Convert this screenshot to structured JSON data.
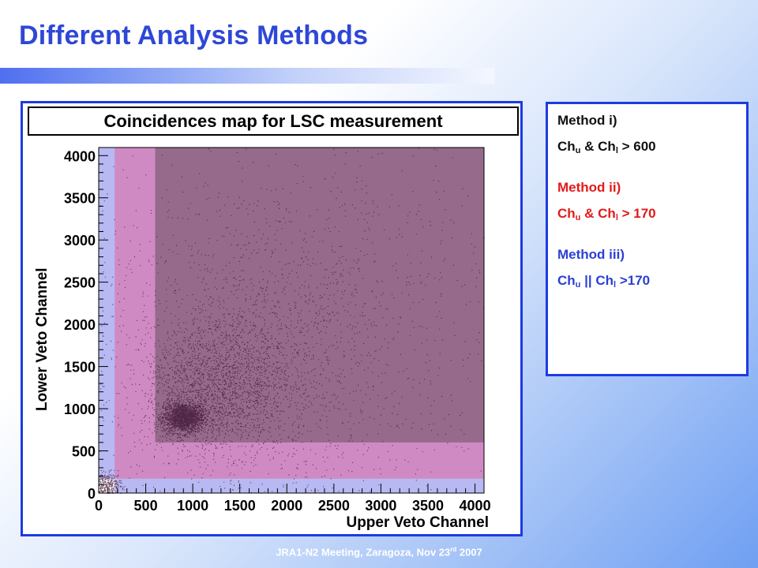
{
  "slide": {
    "title": "Different Analysis Methods",
    "footer_main": "JRA1-N2 Meeting, Zaragoza, Nov 23",
    "footer_sup": "rd",
    "footer_tail": " 2007"
  },
  "methods": [
    {
      "name": "Method i)",
      "lhs_a": "Ch",
      "sub_a": "u",
      "op": " & ",
      "lhs_b": "Ch",
      "sub_b": "l",
      "rhs": " > 600",
      "color": "#111111"
    },
    {
      "name": "Method ii)",
      "lhs_a": "Ch",
      "sub_a": "u",
      "op": " & ",
      "lhs_b": "Ch",
      "sub_b": "l",
      "rhs": " > 170",
      "color": "#e31a1a"
    },
    {
      "name": "Method iii)",
      "lhs_a": "Ch",
      "sub_a": "u",
      "op": " || ",
      "lhs_b": "Ch",
      "sub_b": "l",
      "rhs": " >170",
      "color": "#2a3fd4"
    }
  ],
  "chart_data": {
    "type": "scatter",
    "title": "Coincidences map for LSC measurement",
    "xlabel": "Upper Veto Channel",
    "ylabel": "Lower Veto Channel",
    "xlim": [
      0,
      4096
    ],
    "ylim": [
      0,
      4096
    ],
    "xticks": [
      0,
      500,
      1000,
      1500,
      2000,
      2500,
      3000,
      3500,
      4000
    ],
    "yticks": [
      0,
      500,
      1000,
      1500,
      2000,
      2500,
      3000,
      3500,
      4000
    ],
    "grid": false,
    "regions": [
      {
        "name": "Method iii) Ch_u || Ch_l > 170",
        "threshold": 170,
        "logic": "or",
        "color": "#b8b8f2"
      },
      {
        "name": "Method ii) Ch_u & Ch_l > 170",
        "threshold": 170,
        "logic": "and",
        "color": "#d08ac3"
      },
      {
        "name": "Method i) Ch_u & Ch_l > 600",
        "threshold": 600,
        "logic": "and",
        "color": "#956a8b"
      }
    ],
    "clusters": [
      {
        "x": 900,
        "y": 900,
        "count": 2200,
        "sx": 110,
        "sy": 90
      },
      {
        "x": 1250,
        "y": 1250,
        "count": 1800,
        "sx": 380,
        "sy": 380
      },
      {
        "x": 1700,
        "y": 1600,
        "count": 900,
        "sx": 650,
        "sy": 650
      },
      {
        "x": 100,
        "y": 100,
        "count": 350,
        "sx": 70,
        "sy": 70
      },
      {
        "x": 2050,
        "y": 2050,
        "count": 1400,
        "sx": 1150,
        "sy": 1150
      }
    ]
  }
}
